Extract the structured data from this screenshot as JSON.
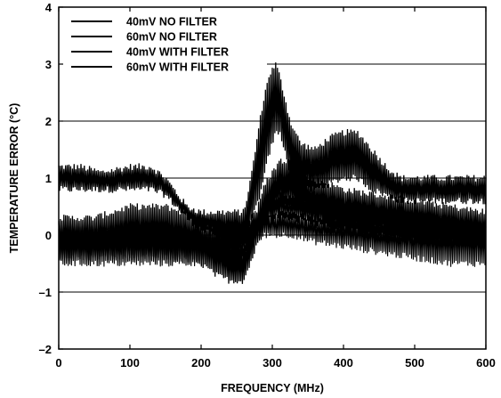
{
  "chart_data": {
    "type": "line",
    "xlabel": "FREQUENCY (MHz)",
    "ylabel": "TEMPERATURE ERROR (°C)",
    "xlim": [
      0,
      600
    ],
    "ylim": [
      -2,
      4
    ],
    "x_ticks": [
      0,
      100,
      200,
      300,
      400,
      500,
      600
    ],
    "y_ticks": [
      -2,
      -1,
      0,
      1,
      2,
      3,
      4
    ],
    "x_tick_labels": [
      "0",
      "100",
      "200",
      "300",
      "400",
      "500",
      "600"
    ],
    "y_tick_labels": [
      "–2",
      "–1",
      "0",
      "1",
      "2",
      "3",
      "4"
    ],
    "grid": "horizontal",
    "legend_position": "top-left",
    "series": [
      {
        "name": "40mV NO FILTER",
        "x": [
          0,
          30,
          60,
          100,
          130,
          150,
          180,
          200,
          230,
          260,
          270,
          285,
          295,
          305,
          310,
          318,
          325,
          340,
          360,
          380,
          400,
          420,
          440,
          460,
          480,
          500,
          520,
          540,
          560,
          580,
          600
        ],
        "hi": [
          1.2,
          1.2,
          1.1,
          1.2,
          1.2,
          1.0,
          0.5,
          0.4,
          0.4,
          0.4,
          1.0,
          2.2,
          2.8,
          3.0,
          2.8,
          2.4,
          2.0,
          1.6,
          1.5,
          1.7,
          1.8,
          1.8,
          1.5,
          1.2,
          1.0,
          1.0,
          1.0,
          1.0,
          1.0,
          1.0,
          1.0
        ],
        "lo": [
          0.8,
          0.8,
          0.8,
          0.8,
          0.8,
          0.7,
          0.3,
          0.1,
          -0.1,
          -0.2,
          0.2,
          0.8,
          1.4,
          1.8,
          1.8,
          1.5,
          1.0,
          0.8,
          0.8,
          0.9,
          1.0,
          1.0,
          0.8,
          0.7,
          0.6,
          0.6,
          0.6,
          0.6,
          0.6,
          0.6,
          0.6
        ]
      },
      {
        "name": "60mV NO FILTER",
        "x": [
          0,
          50,
          100,
          150,
          200,
          220,
          240,
          260,
          275,
          290,
          310,
          330,
          350,
          380,
          400,
          450,
          500,
          550,
          600
        ],
        "hi": [
          0.3,
          0.3,
          0.5,
          0.5,
          0.3,
          0.0,
          -0.2,
          -0.2,
          0.3,
          0.9,
          1.3,
          1.3,
          1.0,
          0.9,
          0.8,
          0.7,
          0.6,
          0.5,
          0.4
        ],
        "lo": [
          -0.4,
          -0.4,
          -0.4,
          -0.4,
          -0.5,
          -0.7,
          -0.8,
          -0.8,
          -0.3,
          0.2,
          0.5,
          0.5,
          0.3,
          0.2,
          0.2,
          0.1,
          0.0,
          -0.1,
          -0.2
        ]
      },
      {
        "name": "40mV WITH FILTER",
        "x": [
          0,
          50,
          100,
          150,
          200,
          250,
          270,
          290,
          310,
          330,
          350,
          400,
          450,
          500,
          550,
          600
        ],
        "hi": [
          0.2,
          0.2,
          0.2,
          0.2,
          0.1,
          0.2,
          0.3,
          0.6,
          0.7,
          0.7,
          0.6,
          0.5,
          0.4,
          0.3,
          0.3,
          0.3
        ],
        "lo": [
          -0.3,
          -0.3,
          -0.3,
          -0.4,
          -0.3,
          -0.3,
          0.0,
          0.3,
          0.3,
          0.3,
          0.2,
          0.1,
          0.0,
          -0.1,
          -0.1,
          -0.1
        ]
      },
      {
        "name": "60mV WITH FILTER",
        "x": [
          0,
          50,
          100,
          150,
          200,
          250,
          270,
          290,
          310,
          330,
          350,
          400,
          450,
          500,
          550,
          600
        ],
        "hi": [
          0.1,
          0.1,
          0.1,
          0.1,
          0.1,
          0.1,
          0.2,
          0.4,
          0.4,
          0.4,
          0.3,
          0.3,
          0.2,
          0.2,
          0.2,
          0.2
        ],
        "lo": [
          -0.5,
          -0.5,
          -0.5,
          -0.5,
          -0.5,
          -0.5,
          -0.2,
          0.0,
          0.0,
          0.0,
          -0.1,
          -0.2,
          -0.3,
          -0.4,
          -0.5,
          -0.5
        ]
      }
    ]
  }
}
